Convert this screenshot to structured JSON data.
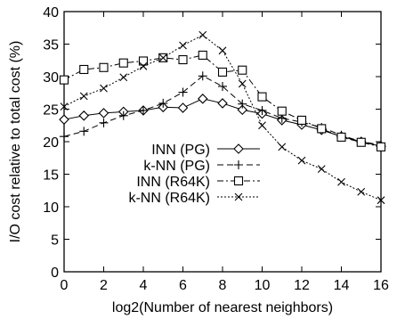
{
  "chart_data": {
    "type": "line",
    "title": "",
    "xlabel": "log2(Number of nearest neighbors)",
    "ylabel": "I/O cost relative to total cost (%)",
    "xlim": [
      0,
      16
    ],
    "ylim": [
      0,
      40
    ],
    "xticks": [
      0,
      2,
      4,
      6,
      8,
      10,
      12,
      14,
      16
    ],
    "yticks": [
      0,
      5,
      10,
      15,
      20,
      25,
      30,
      35,
      40
    ],
    "grid": false,
    "legend_position": "middle-right",
    "x": [
      0,
      1,
      2,
      3,
      4,
      5,
      6,
      7,
      8,
      9,
      10,
      11,
      12,
      13,
      14,
      15,
      16
    ],
    "series": [
      {
        "name": "INN (PG)",
        "marker": "diamond",
        "dash": "solid",
        "values": [
          23.4,
          24.0,
          24.4,
          24.6,
          24.8,
          25.3,
          25.2,
          26.6,
          25.9,
          24.9,
          24.3,
          23.3,
          22.6,
          21.8,
          20.8,
          20.0,
          19.3
        ]
      },
      {
        "name": "k-NN (PG)",
        "marker": "plus",
        "dash": "dashed",
        "values": [
          20.8,
          21.6,
          22.9,
          24.0,
          24.8,
          25.9,
          27.6,
          30.1,
          28.5,
          25.8,
          24.8,
          23.6,
          23.0,
          22.2,
          21.0,
          20.0,
          19.5
        ]
      },
      {
        "name": "INN (R64K)",
        "marker": "square",
        "dash": "dash-dot",
        "values": [
          29.5,
          31.1,
          31.4,
          32.1,
          32.4,
          32.9,
          32.6,
          33.3,
          30.7,
          31.0,
          26.9,
          24.7,
          23.3,
          22.0,
          20.7,
          19.9,
          19.2
        ]
      },
      {
        "name": "k-NN (R64K)",
        "marker": "cross",
        "dash": "dotted",
        "values": [
          25.4,
          27.0,
          28.2,
          29.9,
          31.6,
          32.9,
          34.8,
          36.4,
          34.0,
          28.9,
          22.5,
          19.2,
          17.1,
          15.8,
          13.8,
          12.3,
          11.0
        ]
      }
    ]
  }
}
